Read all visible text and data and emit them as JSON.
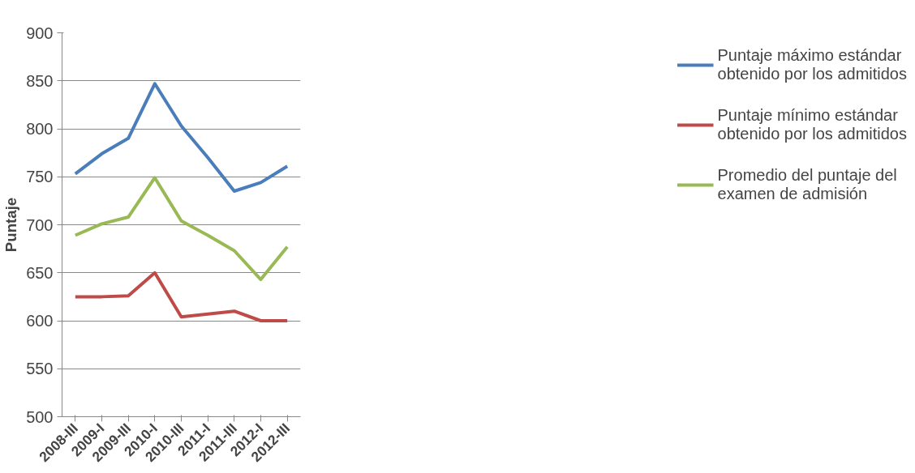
{
  "chart_data": {
    "type": "line",
    "ylabel": "Puntaje",
    "categories": [
      "2008-III",
      "2009-I",
      "2009-III",
      "2010-I",
      "2010-III",
      "2011-I",
      "2011-III",
      "2012-I",
      "2012-III"
    ],
    "series": [
      {
        "name": "Puntaje máximo estándar obtenido por los admitidos",
        "color": "#4a7ebb",
        "values": [
          753,
          774,
          790,
          847,
          803,
          770,
          735,
          744,
          761
        ]
      },
      {
        "name": "Puntaje mínimo estándar obtenido por los admitidos",
        "color": "#be4b48",
        "values": [
          625,
          625,
          626,
          650,
          604,
          607,
          610,
          600,
          600
        ]
      },
      {
        "name": "Promedio del puntaje del examen de admisión",
        "color": "#98b954",
        "values": [
          689,
          701,
          708,
          749,
          704,
          689,
          673,
          643,
          677
        ]
      }
    ],
    "ylim": [
      500,
      900
    ],
    "yticks": [
      500,
      550,
      600,
      650,
      700,
      750,
      800,
      850,
      900
    ],
    "grid": "y",
    "legend": "right",
    "marker": "none",
    "line_style": "solid"
  }
}
